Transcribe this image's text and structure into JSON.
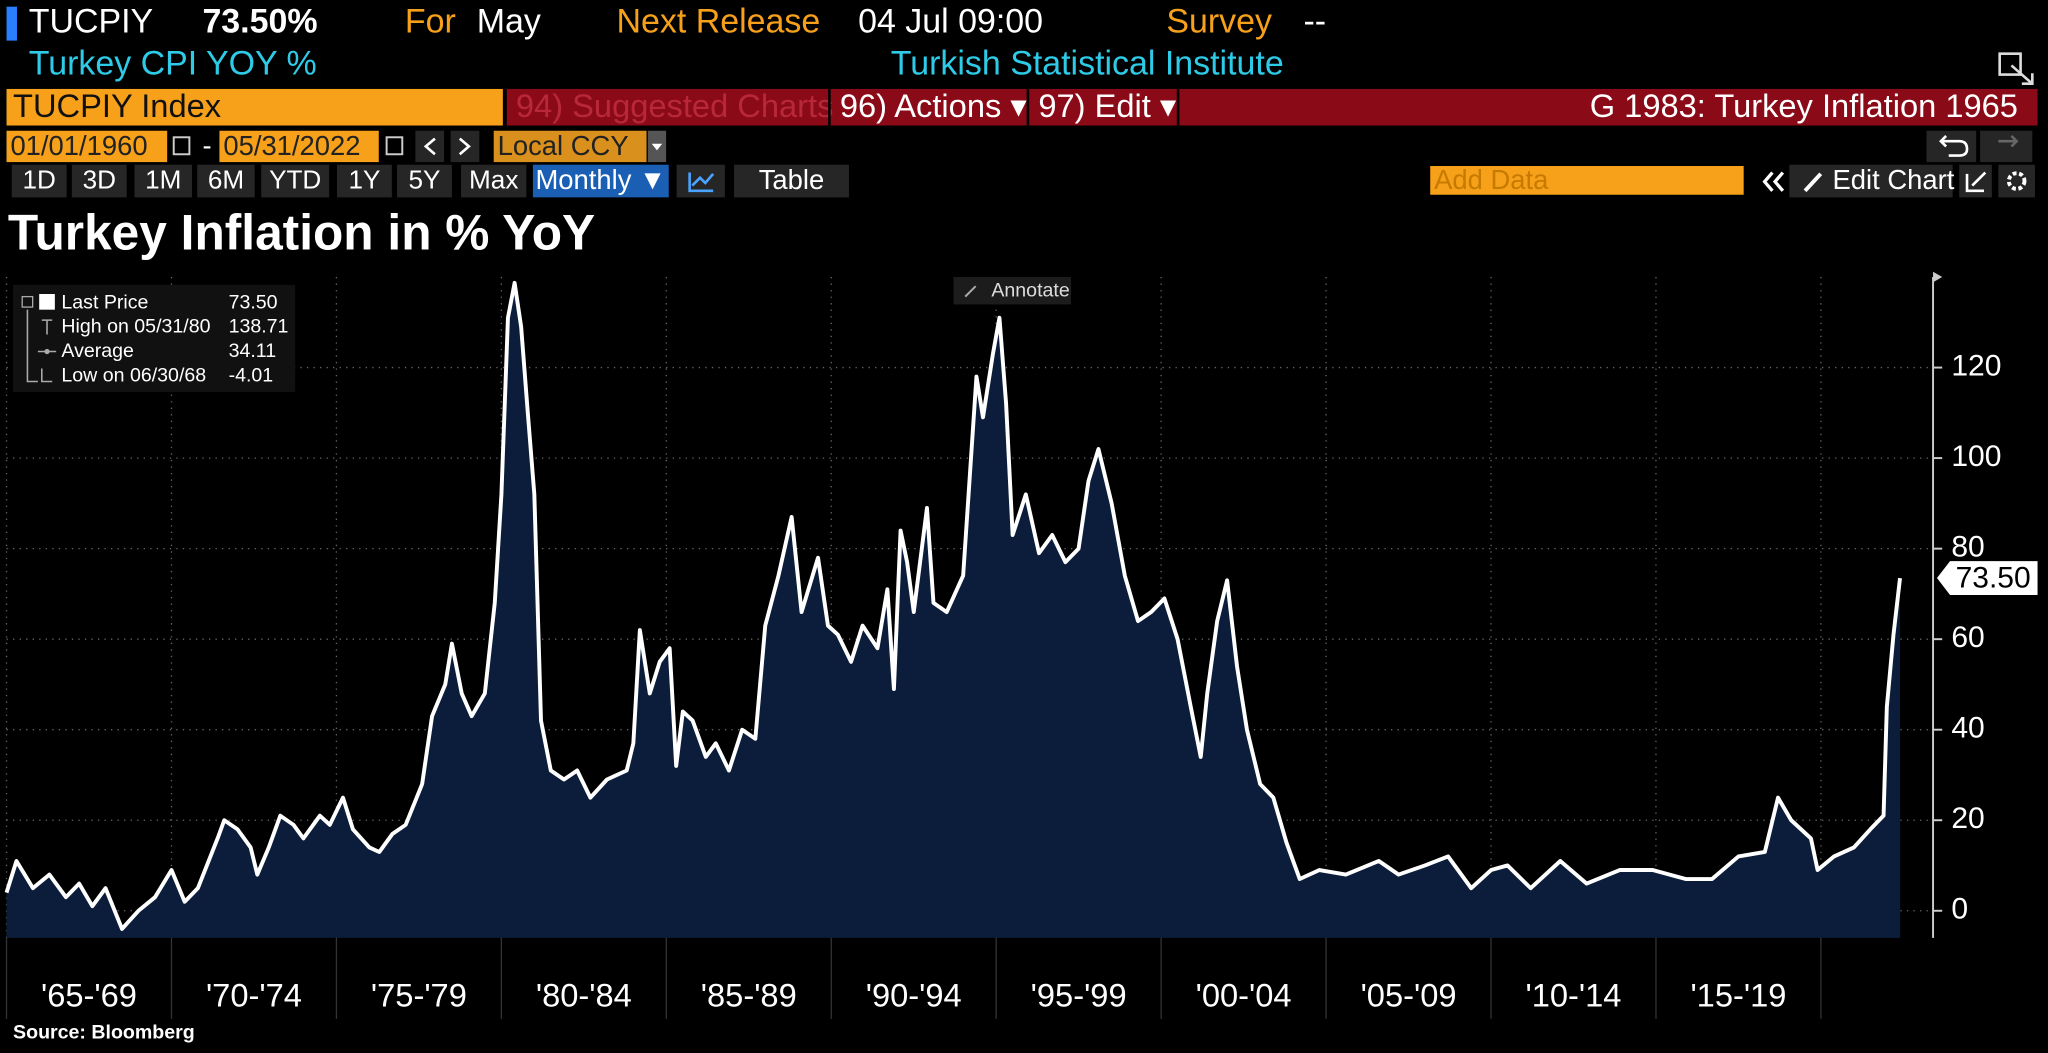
{
  "header": {
    "ticker": "TUCPIY",
    "price": "73.50%",
    "for_label": "For",
    "for_value": "May",
    "release_label": "Next Release",
    "release_value": "04 Jul 09:00",
    "survey_label": "Survey",
    "survey_value": "--",
    "description": "Turkey CPI YOY %",
    "source_org": "Turkish Statistical Institute"
  },
  "toolbar": {
    "security": "TUCPIY Index",
    "suggested": "94) Suggested Charts",
    "actions": "96) Actions ▾",
    "edit": "97) Edit ▾",
    "chart_name": "G 1983: Turkey Inflation 1965",
    "start_date": "01/01/1960",
    "dash": "-",
    "end_date": "05/31/2022",
    "currency": "Local CCY",
    "periods": [
      "1D",
      "3D",
      "1M",
      "6M",
      "YTD",
      "1Y",
      "5Y",
      "Max"
    ],
    "frequency": "Monthly ▼",
    "table": "Table",
    "add_data": "Add Data",
    "edit_chart": "Edit Chart",
    "annotate": "Annotate"
  },
  "chart_data": {
    "type": "area",
    "title": "Turkey Inflation in % YoY",
    "source": "Source: Bloomberg",
    "x": [
      1965.0,
      1965.3,
      1965.8,
      1966.3,
      1966.8,
      1967.2,
      1967.6,
      1968.0,
      1968.5,
      1969.0,
      1969.5,
      1970.0,
      1970.4,
      1970.8,
      1971.4,
      1971.6,
      1972.0,
      1972.4,
      1972.6,
      1972.95,
      1973.3,
      1973.7,
      1974.0,
      1974.5,
      1974.8,
      1975.2,
      1975.5,
      1976.0,
      1976.3,
      1976.7,
      1977.1,
      1977.6,
      1977.9,
      1978.3,
      1978.5,
      1978.8,
      1979.1,
      1979.5,
      1979.8,
      1980.0,
      1980.2,
      1980.4,
      1980.6,
      1980.8,
      1981.0,
      1981.2,
      1981.5,
      1981.9,
      1982.3,
      1982.7,
      1983.2,
      1983.8,
      1984.0,
      1984.2,
      1984.5,
      1984.8,
      1985.1,
      1985.3,
      1985.5,
      1985.8,
      1986.2,
      1986.5,
      1986.9,
      1987.3,
      1987.7,
      1988.0,
      1988.4,
      1988.8,
      1989.1,
      1989.6,
      1989.9,
      1990.2,
      1990.6,
      1990.95,
      1991.4,
      1991.7,
      1991.9,
      1992.1,
      1992.3,
      1992.5,
      1992.9,
      1993.1,
      1993.5,
      1994.0,
      1994.4,
      1994.6,
      1994.9,
      1995.1,
      1995.3,
      1995.5,
      1995.9,
      1996.3,
      1996.7,
      1997.1,
      1997.5,
      1997.8,
      1998.1,
      1998.5,
      1998.9,
      1999.3,
      1999.7,
      2000.1,
      2000.5,
      2000.9,
      2001.2,
      2001.4,
      2001.7,
      2002.0,
      2002.3,
      2002.6,
      2003.0,
      2003.4,
      2003.8,
      2004.2,
      2004.8,
      2005.6,
      2006.6,
      2007.2,
      2008.0,
      2008.7,
      2009.4,
      2010.0,
      2010.5,
      2011.2,
      2012.1,
      2012.9,
      2013.9,
      2014.9,
      2015.9,
      2016.7,
      2017.5,
      2018.3,
      2018.7,
      2019.1,
      2019.7,
      2019.9,
      2020.4,
      2021.0,
      2021.5,
      2021.9,
      2022.0,
      2022.2,
      2022.4
    ],
    "values": [
      4,
      11,
      5,
      8,
      3,
      6,
      1,
      5,
      -4.01,
      0,
      3,
      9,
      2,
      5,
      16,
      20,
      18,
      14,
      8,
      14,
      21,
      19,
      16,
      21,
      19,
      25,
      18,
      14,
      13,
      17,
      19,
      28,
      43,
      50,
      59,
      48,
      43,
      48,
      68,
      92,
      131,
      138.71,
      129,
      110,
      92,
      42,
      31,
      29,
      31,
      25,
      29,
      31,
      37,
      62,
      48,
      55,
      58,
      32,
      44,
      42,
      34,
      37,
      31,
      40,
      38,
      63,
      74,
      87,
      66,
      78,
      63,
      61,
      55,
      63,
      58,
      71,
      49,
      84,
      77,
      66,
      89,
      68,
      66,
      74,
      118,
      109,
      123,
      131,
      112,
      83,
      92,
      79,
      83,
      77,
      80,
      95,
      102,
      90,
      74,
      64,
      66,
      69,
      60,
      45,
      34,
      48,
      64,
      73,
      54,
      40,
      28,
      25,
      15,
      7,
      9,
      8,
      11,
      8,
      10,
      12,
      5,
      9,
      10,
      5,
      11,
      6,
      9,
      9,
      7,
      7,
      12,
      13,
      25,
      20,
      16,
      9,
      12,
      14,
      18,
      21,
      45,
      61,
      73.5
    ],
    "color": "#ffffff",
    "fill": "#0b1d3a",
    "xlim": [
      1965,
      2023.4
    ],
    "xticks": [
      1965,
      1970,
      1975,
      1980,
      1985,
      1990,
      1995,
      2000,
      2005,
      2010,
      2015,
      2020
    ],
    "xtick_labels": [
      "'65-'69",
      "'70-'74",
      "'75-'79",
      "'80-'84",
      "'85-'89",
      "'90-'94",
      "'95-'99",
      "'00-'04",
      "'05-'09",
      "'10-'14",
      "'15-'19"
    ],
    "ylim": [
      -6,
      140
    ],
    "yticks": [
      0,
      20,
      40,
      60,
      80,
      100,
      120
    ],
    "grid": true,
    "stats": [
      {
        "name": "Last Price",
        "value": {
          "value": 73.5,
          "label": "73.50"
        }
      },
      {
        "name": "High on 05/31/80",
        "value": {
          "value": 138.71,
          "label": "138.71"
        }
      },
      {
        "name": "Average",
        "value": {
          "value": 34.11,
          "label": "34.11"
        }
      },
      {
        "name": "Low on 06/30/68",
        "value": {
          "value": -4.01,
          "label": "-4.01"
        }
      }
    ]
  }
}
